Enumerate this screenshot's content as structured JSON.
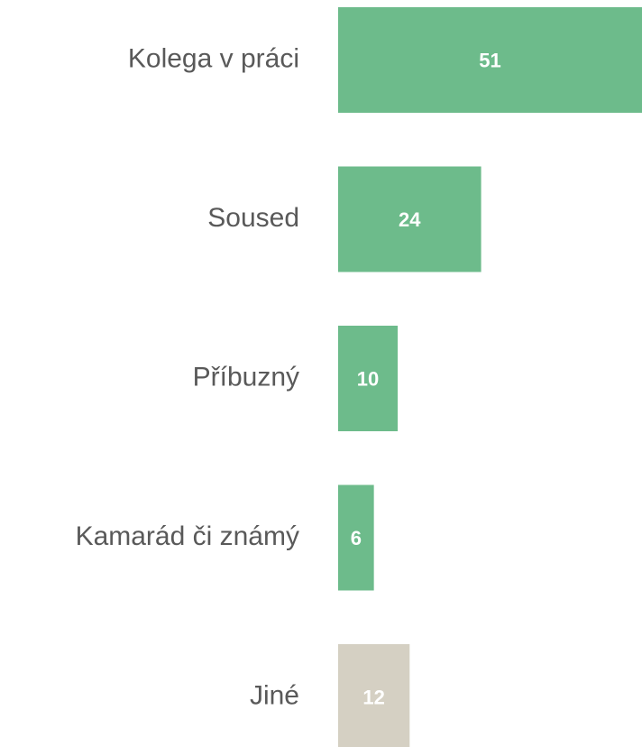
{
  "chart_data": {
    "type": "bar",
    "orientation": "horizontal",
    "categories": [
      "Kolega v práci",
      "Soused",
      "Příbuzný",
      "Kamarád či známý",
      "Jiné"
    ],
    "values": [
      51,
      24,
      10,
      6,
      12
    ],
    "colors": [
      "#6dbb8b",
      "#6dbb8b",
      "#6dbb8b",
      "#6dbb8b",
      "#d5d0c3"
    ]
  }
}
